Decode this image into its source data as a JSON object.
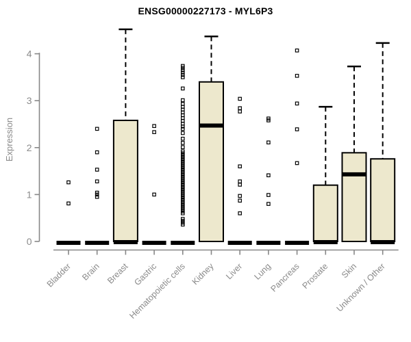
{
  "chart_data": {
    "type": "boxplot",
    "title": "ENSG00000227173 - MYL6P3",
    "ylabel": "Expression",
    "xlabel": "",
    "ylim": [
      0,
      4
    ],
    "yticks": [
      0,
      1,
      2,
      3,
      4
    ],
    "ytick_labels": [
      "0",
      "1",
      "2",
      "3",
      "4"
    ],
    "grid": false,
    "legend_position": "none",
    "colors": {
      "box_fill": "#EDE8CD",
      "box_border": "#000000",
      "median": "#000000",
      "whisker": "#000000",
      "outlier": "#000000",
      "axis": "#878787",
      "tick_label": "#8a8a8a",
      "title": "#000000"
    },
    "categories": [
      "Bladder",
      "Brain",
      "Breast",
      "Gastric",
      "Hematopoietic cells",
      "Kidney",
      "Liver",
      "Lung",
      "Pancreas",
      "Prostate",
      "Skin",
      "Unknown / Other"
    ],
    "series": [
      {
        "category": "Bladder",
        "q1": 0,
        "median": 0,
        "q3": 0,
        "whisker_low": 0,
        "whisker_high": 0,
        "outliers": [
          0.81,
          1.26
        ]
      },
      {
        "category": "Brain",
        "q1": 0,
        "median": 0,
        "q3": 0,
        "whisker_low": 0,
        "whisker_high": 0,
        "outliers": [
          0.95,
          1.0,
          1.04,
          1.28,
          1.53,
          1.9,
          2.4
        ]
      },
      {
        "category": "Breast",
        "q1": 0,
        "median": 0,
        "q3": 2.58,
        "whisker_low": 0,
        "whisker_high": 4.52,
        "outliers": []
      },
      {
        "category": "Gastric",
        "q1": 0,
        "median": 0,
        "q3": 0,
        "whisker_low": 0,
        "whisker_high": 0,
        "outliers": [
          1.0,
          2.33,
          2.46
        ]
      },
      {
        "category": "Hematopoietic cells",
        "q1": 0,
        "median": 0,
        "q3": 0,
        "whisker_low": 0,
        "whisker_high": 0,
        "outliers": [
          0.36,
          0.4,
          0.44,
          0.48,
          0.6,
          0.64,
          0.68,
          0.72,
          0.76,
          0.8,
          0.84,
          0.88,
          0.92,
          0.96,
          1.0,
          1.04,
          1.08,
          1.12,
          1.16,
          1.2,
          1.24,
          1.28,
          1.32,
          1.36,
          1.4,
          1.44,
          1.48,
          1.52,
          1.56,
          1.6,
          1.64,
          1.68,
          1.72,
          1.76,
          1.8,
          1.84,
          1.88,
          1.92,
          2.01,
          2.1,
          2.19,
          2.31,
          2.4,
          2.45,
          2.51,
          2.57,
          2.63,
          2.69,
          2.75,
          2.81,
          2.87,
          2.93,
          3.01,
          3.26,
          3.5,
          3.55,
          3.6,
          3.65,
          3.7,
          3.74
        ]
      },
      {
        "category": "Kidney",
        "q1": 0,
        "median": 2.47,
        "q3": 3.4,
        "whisker_low": 0,
        "whisker_high": 4.37,
        "outliers": []
      },
      {
        "category": "Liver",
        "q1": 0,
        "median": 0,
        "q3": 0,
        "whisker_low": 0,
        "whisker_high": 0,
        "outliers": [
          0.6,
          0.87,
          0.97,
          1.21,
          1.28,
          1.6,
          2.77,
          2.84,
          3.04
        ]
      },
      {
        "category": "Lung",
        "q1": 0,
        "median": 0,
        "q3": 0,
        "whisker_low": 0,
        "whisker_high": 0,
        "outliers": [
          0.8,
          0.99,
          1.41,
          2.11,
          2.58,
          2.62
        ]
      },
      {
        "category": "Pancreas",
        "q1": 0,
        "median": 0,
        "q3": 0,
        "whisker_low": 0,
        "whisker_high": 0,
        "outliers": [
          1.67,
          2.39,
          2.94,
          3.53,
          4.07
        ]
      },
      {
        "category": "Prostate",
        "q1": 0,
        "median": 0,
        "q3": 1.2,
        "whisker_low": 0,
        "whisker_high": 2.87,
        "outliers": []
      },
      {
        "category": "Skin",
        "q1": 0,
        "median": 1.43,
        "q3": 1.89,
        "whisker_low": 0,
        "whisker_high": 3.73,
        "outliers": []
      },
      {
        "category": "Unknown / Other",
        "q1": 0,
        "median": 0,
        "q3": 1.76,
        "whisker_low": 0,
        "whisker_high": 4.23,
        "outliers": []
      }
    ]
  }
}
